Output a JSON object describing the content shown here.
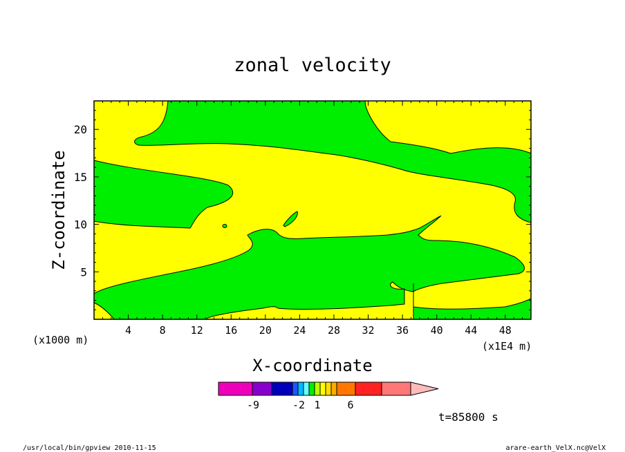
{
  "chart_data": {
    "type": "heatmap",
    "title": "zonal velocity",
    "xlabel": "X-coordinate",
    "ylabel": "Z-coordinate",
    "x_units_left": "(x1000 m)",
    "x_units_right": "(x1E4 m)",
    "xlim": [
      0,
      51
    ],
    "ylim": [
      0,
      23
    ],
    "x_ticks": [
      4,
      8,
      12,
      16,
      20,
      24,
      28,
      32,
      36,
      40,
      44,
      48
    ],
    "y_ticks": [
      5,
      10,
      15,
      20
    ],
    "colors": {
      "positive": "#ffff00",
      "negative": "#00ee00"
    },
    "colorbar": {
      "segments": [
        "#ee00bb",
        "#8800cc",
        "#0000bb",
        "#2255ff",
        "#00bbff",
        "#66ffff",
        "#00ee00",
        "#bbff00",
        "#ffff00",
        "#ffdd00",
        "#ffaa00",
        "#ff7700",
        "#ff2222",
        "#ff7777"
      ],
      "tip_color": "#ffbbbb",
      "labels": [
        "-9",
        "-2",
        "1",
        "6"
      ]
    },
    "time_label": "t=85800 s"
  },
  "footer": {
    "left": "/usr/local/bin/gpview  2010-11-15",
    "right": "arare-earth_VelX.nc@VelX"
  }
}
